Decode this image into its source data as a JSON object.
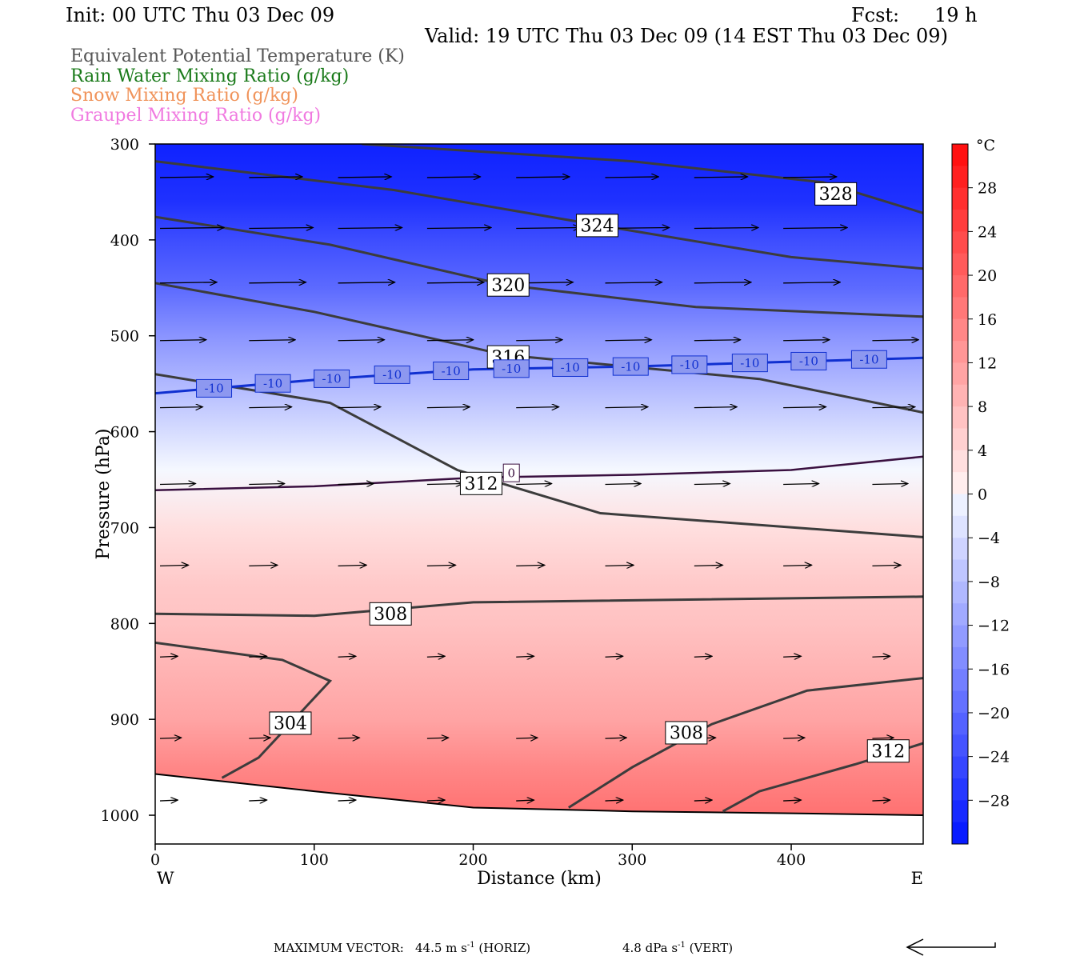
{
  "header": {
    "init": "Init: 00 UTC Thu 03 Dec 09",
    "fcst_label": "Fcst:",
    "fcst_value": "19 h",
    "valid": "Valid: 19 UTC Thu 03 Dec 09 (14 EST Thu 03 Dec 09)"
  },
  "fields": [
    {
      "label": "Equivalent Potential Temperature (K)",
      "color": "#555555"
    },
    {
      "label": "Rain Water Mixing Ratio (g/kg)",
      "color": "#1a7a1a"
    },
    {
      "label": "Snow Mixing Ratio (g/kg)",
      "color": "#f0935a"
    },
    {
      "label": "Graupel Mixing Ratio (g/kg)",
      "color": "#f07ae0"
    }
  ],
  "footer": {
    "max_vector_label": "MAXIMUM VECTOR:",
    "horiz_value": "44.5 m s",
    "horiz_unit": "(HORIZ)",
    "vert_value": "4.8 dPa s",
    "vert_unit": "(VERT)",
    "exponent": "-1"
  },
  "chart_data": {
    "type": "contour_cross_section",
    "xlabel": "Distance (km)",
    "ylabel": "Pressure (hPa)",
    "x_ticks": [
      0,
      100,
      200,
      300,
      400
    ],
    "x_range": [
      0,
      483
    ],
    "y_ticks": [
      300,
      400,
      500,
      600,
      700,
      800,
      900,
      1000
    ],
    "y_range": [
      300,
      1030
    ],
    "y_reversed": true,
    "x_end_labels": {
      "left": "W",
      "right": "E"
    },
    "colorbar": {
      "unit": "°C",
      "tick_labels": [
        28,
        24,
        20,
        16,
        12,
        8,
        4,
        0,
        -4,
        -8,
        -12,
        -16,
        -20,
        -24,
        -28
      ],
      "range": [
        -32,
        32
      ]
    },
    "temperature_rows": [
      {
        "p": 300,
        "t": -30
      },
      {
        "p": 360,
        "t": -28
      },
      {
        "p": 400,
        "t": -24
      },
      {
        "p": 450,
        "t": -20
      },
      {
        "p": 500,
        "t": -14
      },
      {
        "p": 550,
        "t": -9
      },
      {
        "p": 600,
        "t": -4
      },
      {
        "p": 640,
        "t": 0
      },
      {
        "p": 700,
        "t": 3
      },
      {
        "p": 760,
        "t": 6
      },
      {
        "p": 800,
        "t": 7
      },
      {
        "p": 850,
        "t": 9
      },
      {
        "p": 900,
        "t": 11
      },
      {
        "p": 950,
        "t": 15
      },
      {
        "p": 1000,
        "t": 18
      }
    ],
    "theta_e_contours": [
      {
        "label": "328",
        "points": [
          [
            130,
            300
          ],
          [
            300,
            318
          ],
          [
            420,
            340
          ],
          [
            483,
            372
          ]
        ],
        "label_at": [
          428,
          352
        ]
      },
      {
        "label": "324",
        "points": [
          [
            0,
            318
          ],
          [
            150,
            348
          ],
          [
            280,
            385
          ],
          [
            400,
            418
          ],
          [
            483,
            430
          ]
        ],
        "label_at": [
          278,
          385
        ]
      },
      {
        "label": "320",
        "points": [
          [
            0,
            376
          ],
          [
            110,
            405
          ],
          [
            220,
            447
          ],
          [
            340,
            470
          ],
          [
            483,
            480
          ]
        ],
        "label_at": [
          222,
          447
        ]
      },
      {
        "label": "316",
        "points": [
          [
            0,
            445
          ],
          [
            100,
            475
          ],
          [
            220,
            520
          ],
          [
            380,
            545
          ],
          [
            483,
            580
          ]
        ],
        "label_at": [
          222,
          522
        ]
      },
      {
        "label": "312",
        "points": [
          [
            0,
            540
          ],
          [
            110,
            570
          ],
          [
            190,
            640
          ],
          [
            280,
            685
          ],
          [
            483,
            710
          ]
        ],
        "label_at": [
          205,
          654
        ]
      },
      {
        "label": "308",
        "points": [
          [
            0,
            790
          ],
          [
            100,
            792
          ],
          [
            200,
            778
          ],
          [
            483,
            772
          ]
        ],
        "label_at": [
          148,
          790
        ]
      },
      {
        "label": "304",
        "points": [
          [
            0,
            820
          ],
          [
            80,
            838
          ],
          [
            110,
            860
          ],
          [
            65,
            940
          ],
          [
            42,
            961
          ]
        ],
        "label_at": [
          85,
          904
        ]
      },
      {
        "label": "308",
        "points": [
          [
            260,
            992
          ],
          [
            300,
            950
          ],
          [
            350,
            905
          ],
          [
            410,
            870
          ],
          [
            483,
            857
          ]
        ],
        "label_at": [
          334,
          914
        ]
      },
      {
        "label": "312",
        "points": [
          [
            357,
            996
          ],
          [
            380,
            975
          ],
          [
            440,
            947
          ],
          [
            483,
            925
          ]
        ],
        "label_at": [
          461,
          933
        ]
      }
    ],
    "isotherm_minus10": {
      "label": "-10",
      "points": [
        [
          0,
          560
        ],
        [
          100,
          546
        ],
        [
          200,
          535
        ],
        [
          300,
          532
        ],
        [
          400,
          527
        ],
        [
          483,
          523
        ]
      ],
      "label_x": [
        37,
        74,
        111,
        149,
        186,
        224,
        261,
        299,
        336,
        374,
        411,
        449
      ]
    },
    "isotherm_zero": {
      "label": "0",
      "points": [
        [
          0,
          661
        ],
        [
          100,
          657
        ],
        [
          200,
          648
        ],
        [
          300,
          645
        ],
        [
          400,
          640
        ],
        [
          483,
          626
        ]
      ],
      "label_at": [
        224,
        643
      ]
    },
    "terrain": [
      [
        0,
        957
      ],
      [
        100,
        975
      ],
      [
        200,
        992
      ],
      [
        300,
        996
      ],
      [
        400,
        998
      ],
      [
        483,
        1000
      ]
    ],
    "wind_vectors": {
      "x": [
        0,
        56,
        112,
        168,
        224,
        280,
        336,
        392,
        448
      ],
      "rows": [
        {
          "p": 335,
          "len": 30
        },
        {
          "p": 388,
          "len": 36
        },
        {
          "p": 445,
          "len": 32
        },
        {
          "p": 505,
          "len": 26
        },
        {
          "p": 575,
          "len": 24
        },
        {
          "p": 655,
          "len": 20
        },
        {
          "p": 740,
          "len": 16
        },
        {
          "p": 835,
          "len": 10
        },
        {
          "p": 920,
          "len": 12
        },
        {
          "p": 985,
          "len": 10
        }
      ]
    }
  }
}
